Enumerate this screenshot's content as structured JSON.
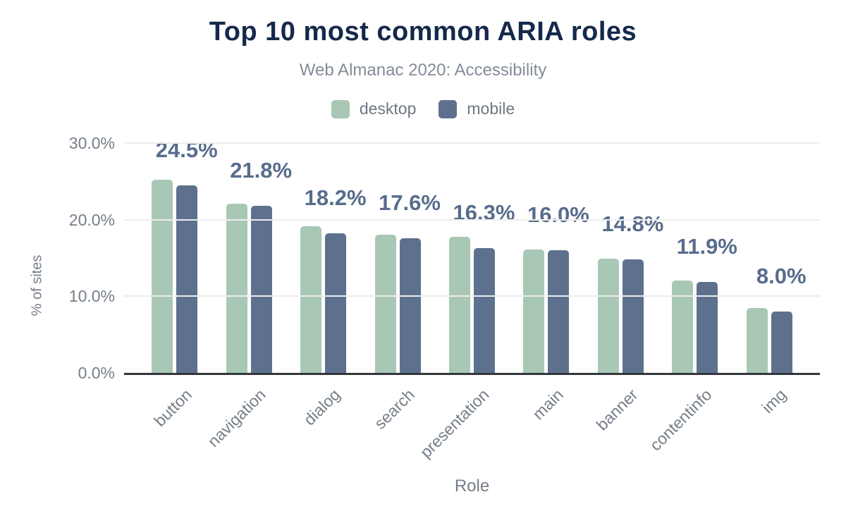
{
  "header": {
    "title": "Top 10 most common ARIA roles",
    "subtitle": "Web Almanac 2020: Accessibility"
  },
  "legend": {
    "items": [
      {
        "label": "desktop",
        "color": "#a8c8b5"
      },
      {
        "label": "mobile",
        "color": "#5d718e"
      }
    ]
  },
  "colors": {
    "title_text": "#15294b",
    "subtitle_text": "#838c98",
    "legend_text": "#6d7780",
    "axis_text": "#757e88",
    "data_label_text": "#586c8c",
    "desktop_bar": "#a8c8b5",
    "mobile_bar": "#5d718e",
    "gridline": "#ededed",
    "baseline": "#32373c"
  },
  "chart_data": {
    "type": "bar",
    "title": "Top 10 most common ARIA roles",
    "subtitle": "Web Almanac 2020: Accessibility",
    "categories": [
      "button",
      "navigation",
      "dialog",
      "search",
      "presentation",
      "main",
      "banner",
      "contentinfo",
      "img"
    ],
    "series": [
      {
        "name": "desktop",
        "color": "#a8c8b5",
        "values": [
          25.2,
          22.1,
          19.1,
          18.0,
          17.8,
          16.1,
          14.9,
          12.1,
          8.5
        ]
      },
      {
        "name": "mobile",
        "color": "#5d718e",
        "values": [
          24.5,
          21.8,
          18.2,
          17.6,
          16.3,
          16.0,
          14.8,
          11.9,
          8.0
        ]
      }
    ],
    "data_labels": {
      "series": "mobile",
      "values": [
        "24.5%",
        "21.8%",
        "18.2%",
        "17.6%",
        "16.3%",
        "16.0%",
        "14.8%",
        "11.9%",
        "8.0%"
      ]
    },
    "xlabel": "Role",
    "ylabel": "% of sites",
    "ylim": [
      0,
      30
    ],
    "y_ticks": [
      {
        "value": 0,
        "label": "0.0%"
      },
      {
        "value": 10,
        "label": "10.0%"
      },
      {
        "value": 20,
        "label": "20.0%"
      },
      {
        "value": 30,
        "label": "30.0%"
      }
    ],
    "grid": "horizontal",
    "legend_position": "top"
  }
}
